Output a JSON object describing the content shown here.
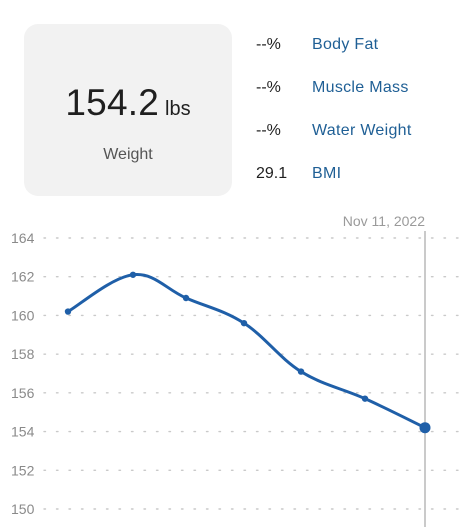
{
  "summary": {
    "weight_value": "154.2",
    "weight_unit": "lbs",
    "weight_label": "Weight"
  },
  "metrics": [
    {
      "value": "--%",
      "name": "Body Fat"
    },
    {
      "value": "--%",
      "name": "Muscle Mass"
    },
    {
      "value": "--%",
      "name": "Water Weight"
    },
    {
      "value": "29.1",
      "name": "BMI"
    }
  ],
  "colors": {
    "accent": "#1f5f95",
    "line": "#1f5fa8",
    "card_bg": "#f2f2f2",
    "cursor": "#b8b8b8"
  },
  "chart_data": {
    "type": "line",
    "selected_date": "Nov 11, 2022",
    "y_ticks": [
      "164",
      "162",
      "160",
      "158",
      "156",
      "154",
      "152",
      "150"
    ],
    "ylim": [
      150,
      164
    ],
    "grid": true,
    "series": [
      {
        "values": [
          160.2,
          162.1,
          160.9,
          159.6,
          157.1,
          155.7,
          154.2
        ]
      }
    ]
  }
}
